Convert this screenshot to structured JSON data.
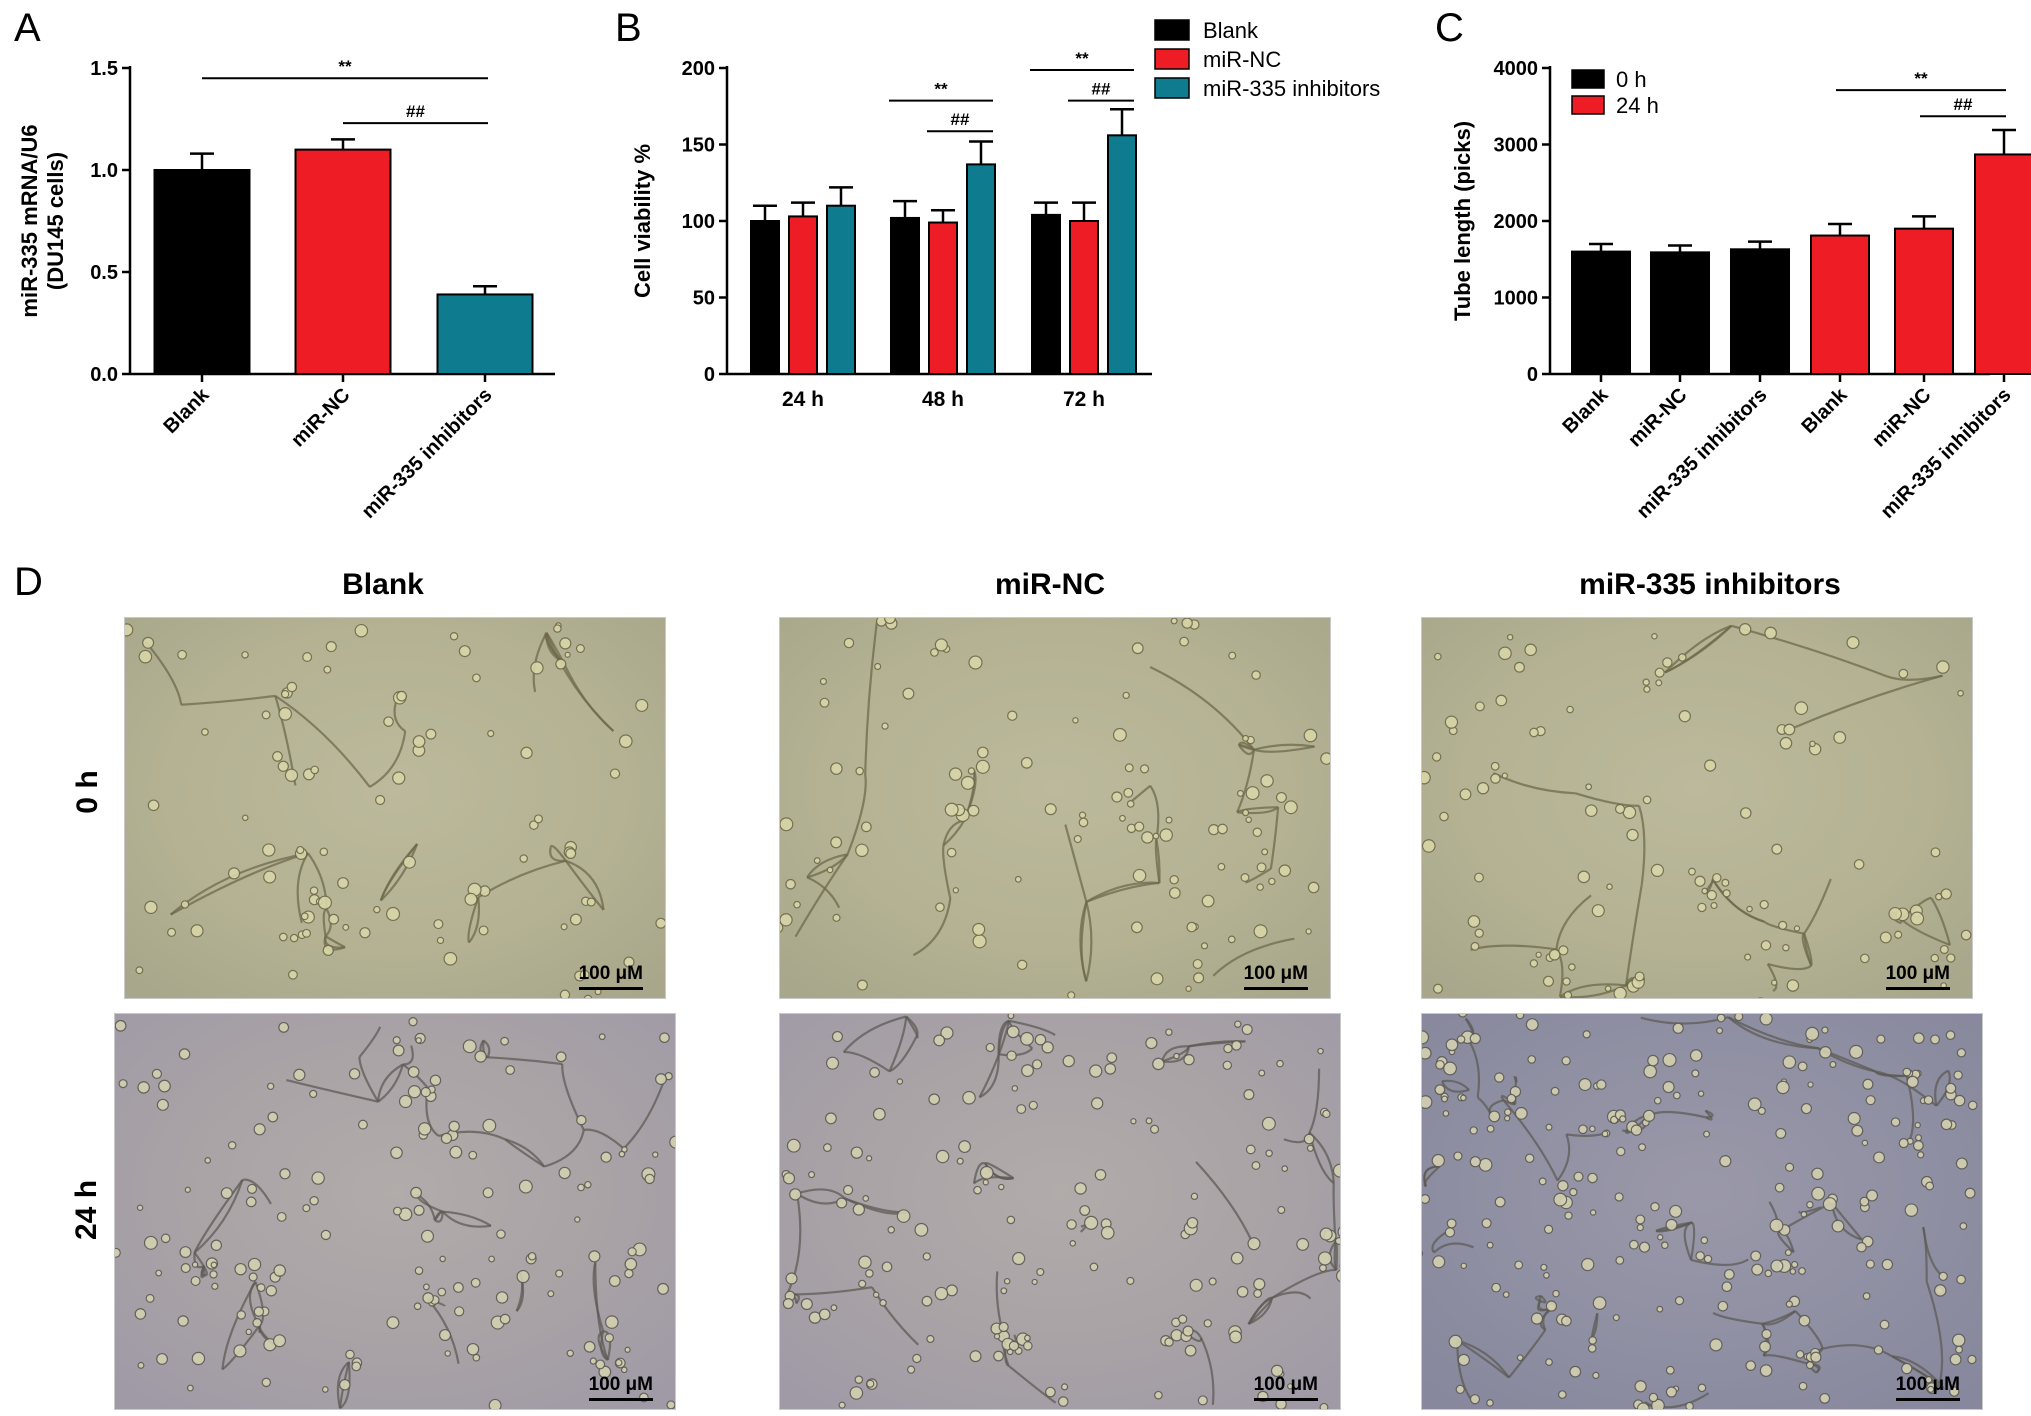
{
  "panels": {
    "A": {
      "letter": "A"
    },
    "B": {
      "letter": "B"
    },
    "C": {
      "letter": "C"
    },
    "D": {
      "letter": "D"
    }
  },
  "chart_data": [
    {
      "panel": "A",
      "type": "bar",
      "ylabel": "miR-335 mRNA/U6\n(DU145 cells)",
      "ylim": [
        0,
        1.5
      ],
      "yticks": [
        "0.0",
        "0.5",
        "1.0",
        "1.5"
      ],
      "categories": [
        "Blank",
        "miR-NC",
        "miR-335 inhibitors"
      ],
      "values": [
        1.0,
        1.1,
        0.39
      ],
      "errors": [
        0.08,
        0.05,
        0.04
      ],
      "colors": [
        "#000000",
        "#ee1c25",
        "#0f7b8f"
      ],
      "annotations": [
        {
          "label": "**",
          "from": 0,
          "to": 2,
          "y": 1.45
        },
        {
          "label": "##",
          "from": 1,
          "to": 2,
          "y": 1.23
        }
      ]
    },
    {
      "panel": "B",
      "type": "bar",
      "ylabel": "Cell viability %",
      "ylim": [
        0,
        200
      ],
      "yticks": [
        "0",
        "50",
        "100",
        "150",
        "200"
      ],
      "categories": [
        "24 h",
        "48 h",
        "72 h"
      ],
      "series": [
        {
          "name": "Blank",
          "color": "#000000",
          "values": [
            100,
            102,
            104
          ],
          "errors": [
            10,
            11,
            8
          ]
        },
        {
          "name": "miR-NC",
          "color": "#ee1c25",
          "values": [
            103,
            99,
            100
          ],
          "errors": [
            9,
            8,
            12
          ]
        },
        {
          "name": "miR-335 inhibitors",
          "color": "#0f7b8f",
          "values": [
            110,
            137,
            156
          ],
          "errors": [
            12,
            15,
            17
          ]
        }
      ],
      "legend": "top-right",
      "annotations": [
        {
          "label": "**",
          "group": 1,
          "from": 0,
          "to": 2,
          "y": 180
        },
        {
          "label": "##",
          "group": 1,
          "from": 1,
          "to": 2,
          "y": 160
        },
        {
          "label": "**",
          "group": 2,
          "from": 0,
          "to": 2,
          "y": 200
        },
        {
          "label": "##",
          "group": 2,
          "from": 1,
          "to": 2,
          "y": 180
        }
      ]
    },
    {
      "panel": "C",
      "type": "bar",
      "ylabel": "Tube length (picks)",
      "ylim": [
        0,
        4000
      ],
      "yticks": [
        "0",
        "1000",
        "2000",
        "3000",
        "4000"
      ],
      "groups": [
        {
          "name": "0 h",
          "color": "#000000",
          "categories": [
            "Blank",
            "miR-NC",
            "miR-335 inhibitors"
          ],
          "values": [
            1600,
            1590,
            1630
          ],
          "errors": [
            100,
            90,
            100
          ]
        },
        {
          "name": "24 h",
          "color": "#ee1c25",
          "categories": [
            "Blank",
            "miR-NC",
            "miR-335 inhibitors"
          ],
          "values": [
            1810,
            1900,
            2870
          ],
          "errors": [
            150,
            160,
            320
          ]
        }
      ],
      "legend": "top-left",
      "annotations": [
        {
          "label": "**",
          "group": 1,
          "from": 0,
          "to": 2,
          "y": 3710
        },
        {
          "label": "##",
          "group": 1,
          "from": 1,
          "to": 2,
          "y": 3370
        }
      ]
    }
  ],
  "micrographs": {
    "columns": [
      "Blank",
      "miR-NC",
      "miR-335 inhibitors"
    ],
    "rows": [
      "0 h",
      "24 h"
    ],
    "scale_label": "100 μM"
  }
}
